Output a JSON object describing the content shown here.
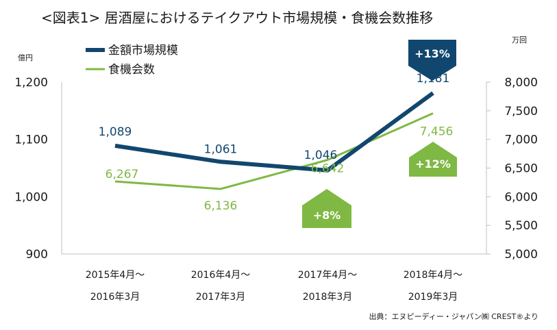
{
  "chart_data": {
    "type": "line",
    "title": "<図表1> 居酒屋におけるテイクアウト市場規模・食機会数推移",
    "y_left_unit": "億円",
    "y_right_unit": "万回",
    "y_left": {
      "ylim": [
        900,
        1200
      ],
      "ticks": [
        "900",
        "1,000",
        "1,100",
        "1,200"
      ],
      "tick_values": [
        900,
        1000,
        1100,
        1200
      ]
    },
    "y_right": {
      "ylim": [
        5000,
        8000
      ],
      "ticks": [
        "5,000",
        "5,500",
        "6,000",
        "6,500",
        "7,000",
        "7,500",
        "8,000"
      ],
      "tick_values": [
        5000,
        5500,
        6000,
        6500,
        7000,
        7500,
        8000
      ]
    },
    "categories": [
      {
        "line1": "2015年4月～",
        "line2": "2016年3月"
      },
      {
        "line1": "2016年4月～",
        "line2": "2017年3月"
      },
      {
        "line1": "2017年4月～",
        "line2": "2018年3月"
      },
      {
        "line1": "2018年4月～",
        "line2": "2019年3月"
      }
    ],
    "series": [
      {
        "name": "金額市場規模",
        "axis": "left",
        "color": "#11476e",
        "values": [
          1089,
          1061,
          1046,
          1181
        ],
        "labels": [
          "1,089",
          "1,061",
          "1,046",
          "1,181"
        ]
      },
      {
        "name": "食機会数",
        "axis": "right",
        "color": "#7fb843",
        "values": [
          6267,
          6136,
          6642,
          7456
        ],
        "labels": [
          "6,267",
          "6,136",
          "6,642",
          "7,456"
        ]
      }
    ],
    "annotations": [
      {
        "text": "+13%",
        "series": "金額市場規模",
        "point": 3,
        "shape": "down-arrow",
        "color": "#11476e"
      },
      {
        "text": "+12%",
        "series": "食機会数",
        "point": 3,
        "shape": "up-arrow",
        "color": "#7fb843"
      },
      {
        "text": "+8%",
        "series": "食機会数",
        "point": 2,
        "shape": "up-arrow",
        "color": "#7fb843"
      }
    ],
    "source": "出典：エヌピーディー・ジャパン㈱ CREST®より",
    "grid": false,
    "legend_position": "top-left"
  }
}
